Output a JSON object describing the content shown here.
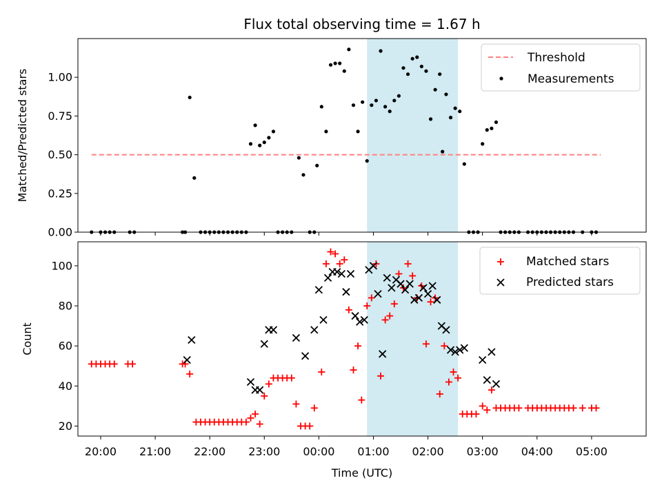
{
  "chart_data": [
    {
      "type": "scatter",
      "title": "Flux total observing time = 1.67 h",
      "xlabel": "",
      "ylabel": "Matched/Predicted stars",
      "x_unit": "UTC time",
      "xlim": [
        "19:35",
        "06:00"
      ],
      "ylim": [
        0,
        1.25
      ],
      "yticks": [
        "0.00",
        "0.25",
        "0.50",
        "0.75",
        "1.00"
      ],
      "shaded_interval": [
        "00:53",
        "02:33"
      ],
      "shaded_color": "#add8e6",
      "threshold": {
        "name": "Threshold",
        "value": 0.5,
        "x_range": [
          "19:50",
          "05:10"
        ],
        "color": "#ff7f7f",
        "style": "dashed"
      },
      "series": [
        {
          "name": "Measurements",
          "color": "#000000",
          "marker": "dot",
          "points": [
            [
              "19:50",
              0
            ],
            [
              "20:00",
              0
            ],
            [
              "20:05",
              0
            ],
            [
              "20:10",
              0
            ],
            [
              "20:15",
              0
            ],
            [
              "20:32",
              0
            ],
            [
              "20:37",
              0
            ],
            [
              "21:30",
              0
            ],
            [
              "21:33",
              0
            ],
            [
              "21:38",
              0.87
            ],
            [
              "21:43",
              0.35
            ],
            [
              "21:50",
              0
            ],
            [
              "21:55",
              0
            ],
            [
              "22:00",
              0
            ],
            [
              "22:05",
              0
            ],
            [
              "22:10",
              0
            ],
            [
              "22:15",
              0
            ],
            [
              "22:20",
              0
            ],
            [
              "22:25",
              0
            ],
            [
              "22:30",
              0
            ],
            [
              "22:35",
              0
            ],
            [
              "22:40",
              0
            ],
            [
              "22:45",
              0.57
            ],
            [
              "22:50",
              0.69
            ],
            [
              "22:55",
              0.56
            ],
            [
              "23:00",
              0.58
            ],
            [
              "23:05",
              0.61
            ],
            [
              "23:10",
              0.65
            ],
            [
              "23:15",
              0
            ],
            [
              "23:20",
              0
            ],
            [
              "23:25",
              0
            ],
            [
              "23:30",
              0
            ],
            [
              "23:38",
              0.48
            ],
            [
              "23:43",
              0.37
            ],
            [
              "23:50",
              0
            ],
            [
              "23:55",
              0
            ],
            [
              "23:58",
              0.43
            ],
            [
              "00:03",
              0.81
            ],
            [
              "00:08",
              0.65
            ],
            [
              "00:13",
              1.08
            ],
            [
              "00:18",
              1.09
            ],
            [
              "00:23",
              1.09
            ],
            [
              "00:28",
              1.04
            ],
            [
              "00:33",
              1.18
            ],
            [
              "00:38",
              0.82
            ],
            [
              "00:43",
              0.65
            ],
            [
              "00:48",
              0.84
            ],
            [
              "00:53",
              0.46
            ],
            [
              "00:58",
              0.82
            ],
            [
              "01:03",
              0.85
            ],
            [
              "01:08",
              1.17
            ],
            [
              "01:13",
              0.81
            ],
            [
              "01:18",
              0.78
            ],
            [
              "01:23",
              0.85
            ],
            [
              "01:28",
              0.88
            ],
            [
              "01:33",
              1.06
            ],
            [
              "01:38",
              1.02
            ],
            [
              "01:43",
              1.12
            ],
            [
              "01:48",
              1.13
            ],
            [
              "01:53",
              1.07
            ],
            [
              "01:58",
              1.04
            ],
            [
              "02:03",
              0.73
            ],
            [
              "02:08",
              0.92
            ],
            [
              "02:13",
              1.02
            ],
            [
              "02:16",
              0.52
            ],
            [
              "02:20",
              0.89
            ],
            [
              "02:25",
              0.74
            ],
            [
              "02:30",
              0.8
            ],
            [
              "02:35",
              0.78
            ],
            [
              "02:40",
              0.44
            ],
            [
              "02:45",
              0
            ],
            [
              "02:50",
              0
            ],
            [
              "02:55",
              0
            ],
            [
              "03:00",
              0.57
            ],
            [
              "03:05",
              0.66
            ],
            [
              "03:10",
              0.67
            ],
            [
              "03:15",
              0.71
            ],
            [
              "03:20",
              0
            ],
            [
              "03:25",
              0
            ],
            [
              "03:30",
              0
            ],
            [
              "03:35",
              0
            ],
            [
              "03:40",
              0
            ],
            [
              "03:50",
              0
            ],
            [
              "03:55",
              0
            ],
            [
              "04:00",
              0
            ],
            [
              "04:05",
              0
            ],
            [
              "04:10",
              0
            ],
            [
              "04:15",
              0
            ],
            [
              "04:20",
              0
            ],
            [
              "04:25",
              0
            ],
            [
              "04:30",
              0
            ],
            [
              "04:35",
              0
            ],
            [
              "04:40",
              0
            ],
            [
              "04:50",
              0
            ],
            [
              "05:00",
              0
            ],
            [
              "05:05",
              0
            ]
          ]
        }
      ],
      "legend": {
        "position": "upper right",
        "entries": [
          "Threshold",
          "Measurements"
        ]
      }
    },
    {
      "type": "scatter",
      "title": "",
      "xlabel": "Time (UTC)",
      "ylabel": "Count",
      "xlim": [
        "19:35",
        "06:00"
      ],
      "ylim": [
        15,
        112
      ],
      "yticks": [
        "20",
        "40",
        "60",
        "80",
        "100"
      ],
      "xticks": [
        "20:00",
        "21:00",
        "22:00",
        "23:00",
        "00:00",
        "01:00",
        "02:00",
        "03:00",
        "04:00",
        "05:00"
      ],
      "shaded_interval": [
        "00:53",
        "02:33"
      ],
      "shaded_color": "#add8e6",
      "series": [
        {
          "name": "Matched stars",
          "color": "#ff0000",
          "marker": "plus",
          "points": [
            [
              "19:50",
              51
            ],
            [
              "19:55",
              51
            ],
            [
              "20:00",
              51
            ],
            [
              "20:05",
              51
            ],
            [
              "20:10",
              51
            ],
            [
              "20:15",
              51
            ],
            [
              "20:30",
              51
            ],
            [
              "20:35",
              51
            ],
            [
              "21:30",
              51
            ],
            [
              "21:33",
              51
            ],
            [
              "21:38",
              46
            ],
            [
              "21:45",
              22
            ],
            [
              "21:50",
              22
            ],
            [
              "21:55",
              22
            ],
            [
              "22:00",
              22
            ],
            [
              "22:05",
              22
            ],
            [
              "22:10",
              22
            ],
            [
              "22:15",
              22
            ],
            [
              "22:20",
              22
            ],
            [
              "22:25",
              22
            ],
            [
              "22:30",
              22
            ],
            [
              "22:35",
              22
            ],
            [
              "22:40",
              22
            ],
            [
              "22:45",
              24
            ],
            [
              "22:50",
              26
            ],
            [
              "22:55",
              21
            ],
            [
              "23:00",
              35
            ],
            [
              "23:05",
              41
            ],
            [
              "23:10",
              44
            ],
            [
              "23:15",
              44
            ],
            [
              "23:20",
              44
            ],
            [
              "23:25",
              44
            ],
            [
              "23:30",
              44
            ],
            [
              "23:35",
              31
            ],
            [
              "23:40",
              20
            ],
            [
              "23:45",
              20
            ],
            [
              "23:50",
              20
            ],
            [
              "23:55",
              29
            ],
            [
              "00:03",
              47
            ],
            [
              "00:08",
              101
            ],
            [
              "00:13",
              107
            ],
            [
              "00:18",
              106
            ],
            [
              "00:23",
              101
            ],
            [
              "00:28",
              103
            ],
            [
              "00:33",
              78
            ],
            [
              "00:38",
              48
            ],
            [
              "00:43",
              60
            ],
            [
              "00:47",
              33
            ],
            [
              "00:53",
              80
            ],
            [
              "00:58",
              84
            ],
            [
              "01:03",
              101
            ],
            [
              "01:08",
              45
            ],
            [
              "01:13",
              73
            ],
            [
              "01:18",
              75
            ],
            [
              "01:23",
              81
            ],
            [
              "01:28",
              96
            ],
            [
              "01:33",
              89
            ],
            [
              "01:38",
              101
            ],
            [
              "01:43",
              95
            ],
            [
              "01:48",
              84
            ],
            [
              "01:53",
              90
            ],
            [
              "01:58",
              61
            ],
            [
              "02:03",
              82
            ],
            [
              "02:08",
              84
            ],
            [
              "02:13",
              36
            ],
            [
              "02:18",
              60
            ],
            [
              "02:23",
              42
            ],
            [
              "02:28",
              47
            ],
            [
              "02:33",
              44
            ],
            [
              "02:38",
              26
            ],
            [
              "02:43",
              26
            ],
            [
              "02:48",
              26
            ],
            [
              "02:53",
              26
            ],
            [
              "03:00",
              30
            ],
            [
              "03:05",
              28
            ],
            [
              "03:10",
              38
            ],
            [
              "03:15",
              29
            ],
            [
              "03:20",
              29
            ],
            [
              "03:25",
              29
            ],
            [
              "03:30",
              29
            ],
            [
              "03:35",
              29
            ],
            [
              "03:40",
              29
            ],
            [
              "03:50",
              29
            ],
            [
              "03:55",
              29
            ],
            [
              "04:00",
              29
            ],
            [
              "04:05",
              29
            ],
            [
              "04:10",
              29
            ],
            [
              "04:15",
              29
            ],
            [
              "04:20",
              29
            ],
            [
              "04:25",
              29
            ],
            [
              "04:30",
              29
            ],
            [
              "04:35",
              29
            ],
            [
              "04:40",
              29
            ],
            [
              "04:50",
              29
            ],
            [
              "05:00",
              29
            ],
            [
              "05:05",
              29
            ]
          ]
        },
        {
          "name": "Predicted stars",
          "color": "#000000",
          "marker": "x",
          "points": [
            [
              "21:35",
              53
            ],
            [
              "21:40",
              63
            ],
            [
              "22:45",
              42
            ],
            [
              "22:50",
              38
            ],
            [
              "22:55",
              38
            ],
            [
              "23:00",
              61
            ],
            [
              "23:05",
              68
            ],
            [
              "23:10",
              68
            ],
            [
              "23:35",
              64
            ],
            [
              "23:45",
              55
            ],
            [
              "23:55",
              68
            ],
            [
              "00:00",
              88
            ],
            [
              "00:05",
              73
            ],
            [
              "00:10",
              94
            ],
            [
              "00:15",
              97
            ],
            [
              "00:20",
              97
            ],
            [
              "00:25",
              96
            ],
            [
              "00:30",
              87
            ],
            [
              "00:35",
              96
            ],
            [
              "00:40",
              75
            ],
            [
              "00:45",
              72
            ],
            [
              "00:50",
              73
            ],
            [
              "00:55",
              98
            ],
            [
              "01:00",
              100
            ],
            [
              "01:05",
              86
            ],
            [
              "01:10",
              56
            ],
            [
              "01:15",
              94
            ],
            [
              "01:20",
              89
            ],
            [
              "01:25",
              93
            ],
            [
              "01:30",
              91
            ],
            [
              "01:35",
              88
            ],
            [
              "01:40",
              91
            ],
            [
              "01:45",
              83
            ],
            [
              "01:50",
              84
            ],
            [
              "01:55",
              89
            ],
            [
              "02:00",
              86
            ],
            [
              "02:05",
              90
            ],
            [
              "02:10",
              83
            ],
            [
              "02:15",
              70
            ],
            [
              "02:20",
              68
            ],
            [
              "02:25",
              58
            ],
            [
              "02:30",
              57
            ],
            [
              "02:35",
              58
            ],
            [
              "02:40",
              59
            ],
            [
              "03:00",
              53
            ],
            [
              "03:05",
              43
            ],
            [
              "03:10",
              57
            ],
            [
              "03:15",
              41
            ]
          ]
        }
      ],
      "legend": {
        "position": "upper right",
        "entries": [
          "Matched stars",
          "Predicted stars"
        ]
      }
    }
  ]
}
